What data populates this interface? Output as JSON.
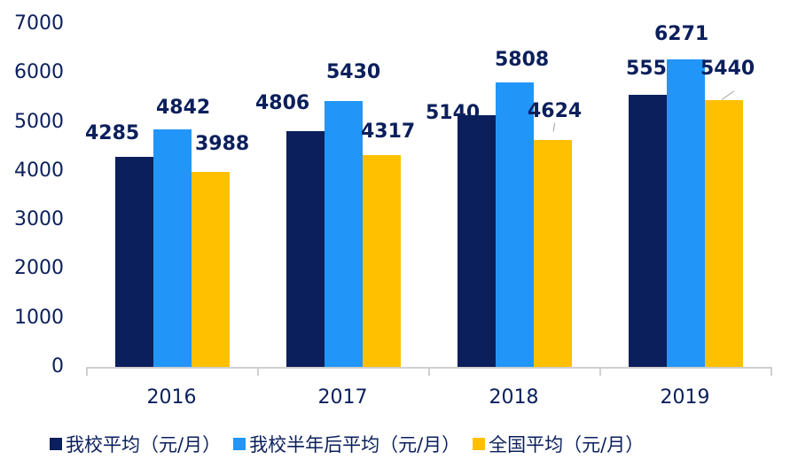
{
  "chart_data": {
    "type": "bar",
    "title": "",
    "xlabel": "",
    "ylabel": "",
    "categories": [
      "2016",
      "2017",
      "2018",
      "2019"
    ],
    "series": [
      {
        "name": "我校平均（元/月）",
        "color": "#0a1f5c",
        "values": [
          4285,
          4806,
          5140,
          5550
        ]
      },
      {
        "name": "我校半年后平均（元/月）",
        "color": "#2196f8",
        "values": [
          4842,
          5430,
          5808,
          6271
        ]
      },
      {
        "name": "全国平均（元/月）",
        "color": "#ffc000",
        "values": [
          3988,
          4317,
          4624,
          5440
        ]
      }
    ],
    "ylim": [
      0,
      7000
    ],
    "yticks": [
      "0",
      "1000",
      "2000",
      "3000",
      "4000",
      "5000",
      "6000",
      "7000"
    ],
    "grid": false,
    "legend_position": "bottom",
    "data_labels": true
  },
  "legend": {
    "items": [
      {
        "label": "我校平均（元/月）",
        "color": "#0a1f5c"
      },
      {
        "label": "我校半年后平均（元/月）",
        "color": "#2196f8"
      },
      {
        "label": "全国平均（元/月）",
        "color": "#ffc000"
      }
    ]
  }
}
